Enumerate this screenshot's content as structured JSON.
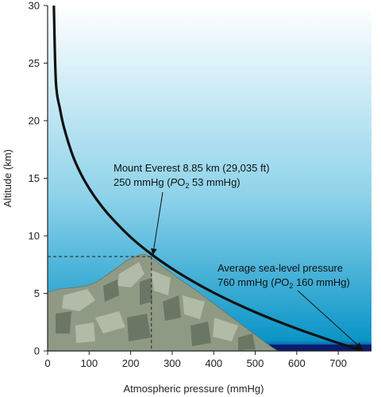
{
  "chart_data": {
    "type": "line",
    "xlabel": "Atmospheric pressure (mmHg)",
    "ylabel": "Altitude (km)",
    "xlim": [
      0,
      780
    ],
    "ylim": [
      0,
      30
    ],
    "xticks": [
      0,
      100,
      200,
      300,
      400,
      500,
      600,
      700
    ],
    "yticks": [
      0,
      5,
      10,
      15,
      20,
      25,
      30
    ],
    "grid": false,
    "series": [
      {
        "x": [
          760,
          700,
          650,
          600,
          550,
          500,
          450,
          400,
          350,
          300,
          250,
          200,
          150,
          120,
          100,
          80,
          60,
          40,
          30,
          20,
          15
        ],
        "y": [
          0,
          0.69,
          1.3,
          1.94,
          2.63,
          3.37,
          4.18,
          5.06,
          6.04,
          7.14,
          8.4,
          9.88,
          11.72,
          13.06,
          14.12,
          15.39,
          17.02,
          19.33,
          20.98,
          23.32,
          30
        ]
      }
    ],
    "annotations": [
      {
        "lines": [
          {
            "text": "Mount Everest 8.85 km (29,035 ft)"
          },
          {
            "pre": "250 mmHg (",
            "italic": "P",
            "mid": "O",
            "sub": "2",
            "post": " 53 mmHg)"
          }
        ],
        "point": [
          250,
          8.2
        ]
      },
      {
        "lines": [
          {
            "text": "Average sea-level pressure"
          },
          {
            "pre": "760 mmHg (",
            "italic": "P",
            "mid": "O",
            "sub": "2",
            "post": " 160 mmHg)"
          }
        ],
        "point": [
          760,
          0
        ]
      }
    ],
    "colors": {
      "curve": "#111111",
      "sky_top": "#ffffff",
      "sky_mid": "#8fd3ea",
      "sky_bottom": "#0a95c7",
      "ground_band": "#0a1c6e",
      "mountain": "#8f9a85",
      "mountain_light": "#b9c0ae",
      "mountain_dark": "#5f6b5b"
    }
  }
}
